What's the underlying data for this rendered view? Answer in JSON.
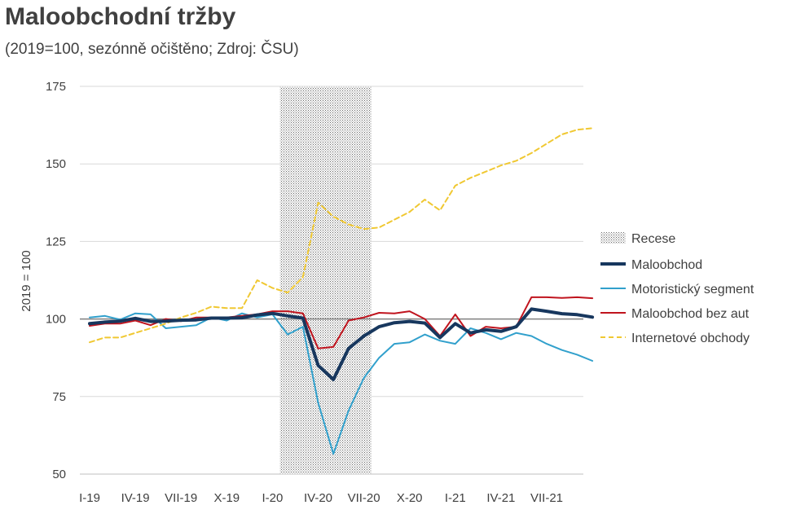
{
  "chart_data": {
    "type": "line",
    "title": "Maloobchodní tržby",
    "subtitle": "(2019=100, sezónně očištěno; Zdroj: ČSU)",
    "ylabel": "2019 = 100",
    "xlabel": "",
    "ylim": [
      50,
      175
    ],
    "yticks": [
      50,
      75,
      100,
      125,
      150,
      175
    ],
    "grid": true,
    "legend_position": "right",
    "x_ticks": [
      "I-19",
      "IV-19",
      "VII-19",
      "X-19",
      "I-20",
      "IV-20",
      "VII-20",
      "X-20",
      "I-21",
      "IV-21",
      "VII-21"
    ],
    "months": 33,
    "reference_line": 100,
    "recession": {
      "label": "Recese",
      "start": 13,
      "end": 18
    },
    "series": [
      {
        "name": "Maloobchod",
        "color": "#17375e",
        "dash": "solid",
        "width": 4,
        "values": [
          98.5,
          99.0,
          99.3,
          100.2,
          99.2,
          99.3,
          99.6,
          99.7,
          100.3,
          100.3,
          100.4,
          101.3,
          101.8,
          101.0,
          100.3,
          85.0,
          80.5,
          90.5,
          94.5,
          97.5,
          98.8,
          99.2,
          98.7,
          94.0,
          98.5,
          95.5,
          96.5,
          96.0,
          97.5,
          103.2,
          102.5,
          101.7,
          101.4,
          100.6
        ]
      },
      {
        "name": "Motoristický segment",
        "color": "#31a0cc",
        "dash": "solid",
        "width": 2,
        "values": [
          100.5,
          101.0,
          99.8,
          101.8,
          101.5,
          97.0,
          97.5,
          98.0,
          100.5,
          99.5,
          101.8,
          100.5,
          101.5,
          95.0,
          97.5,
          73.0,
          56.5,
          70.5,
          81.0,
          87.5,
          92.0,
          92.5,
          95.0,
          93.0,
          92.0,
          97.0,
          95.5,
          93.5,
          95.5,
          94.5,
          92.0,
          90.0,
          88.5,
          86.5
        ]
      },
      {
        "name": "Maloobchod bez aut",
        "color": "#c0141e",
        "dash": "solid",
        "width": 2,
        "values": [
          97.8,
          98.5,
          98.5,
          99.5,
          98.0,
          100.0,
          99.3,
          100.5,
          100.5,
          100.5,
          101.0,
          101.5,
          102.5,
          102.5,
          101.8,
          90.5,
          91.0,
          99.5,
          100.5,
          102.0,
          101.8,
          102.5,
          100.0,
          94.5,
          101.5,
          94.5,
          97.5,
          97.0,
          97.5,
          107.0,
          107.0,
          106.8,
          107.0,
          106.7
        ]
      },
      {
        "name": "Internetové obchody",
        "color": "#f0c832",
        "dash": "dashed",
        "width": 2,
        "values": [
          92.5,
          94.0,
          94.0,
          95.5,
          97.0,
          98.5,
          100.5,
          102.0,
          104.0,
          103.5,
          103.5,
          112.5,
          110.0,
          108.5,
          113.5,
          137.5,
          133.0,
          130.5,
          129.0,
          129.5,
          132.0,
          134.5,
          138.5,
          135.0,
          143.0,
          145.5,
          147.5,
          149.5,
          151.0,
          153.5,
          156.5,
          159.5,
          161.0,
          161.5
        ]
      }
    ]
  }
}
